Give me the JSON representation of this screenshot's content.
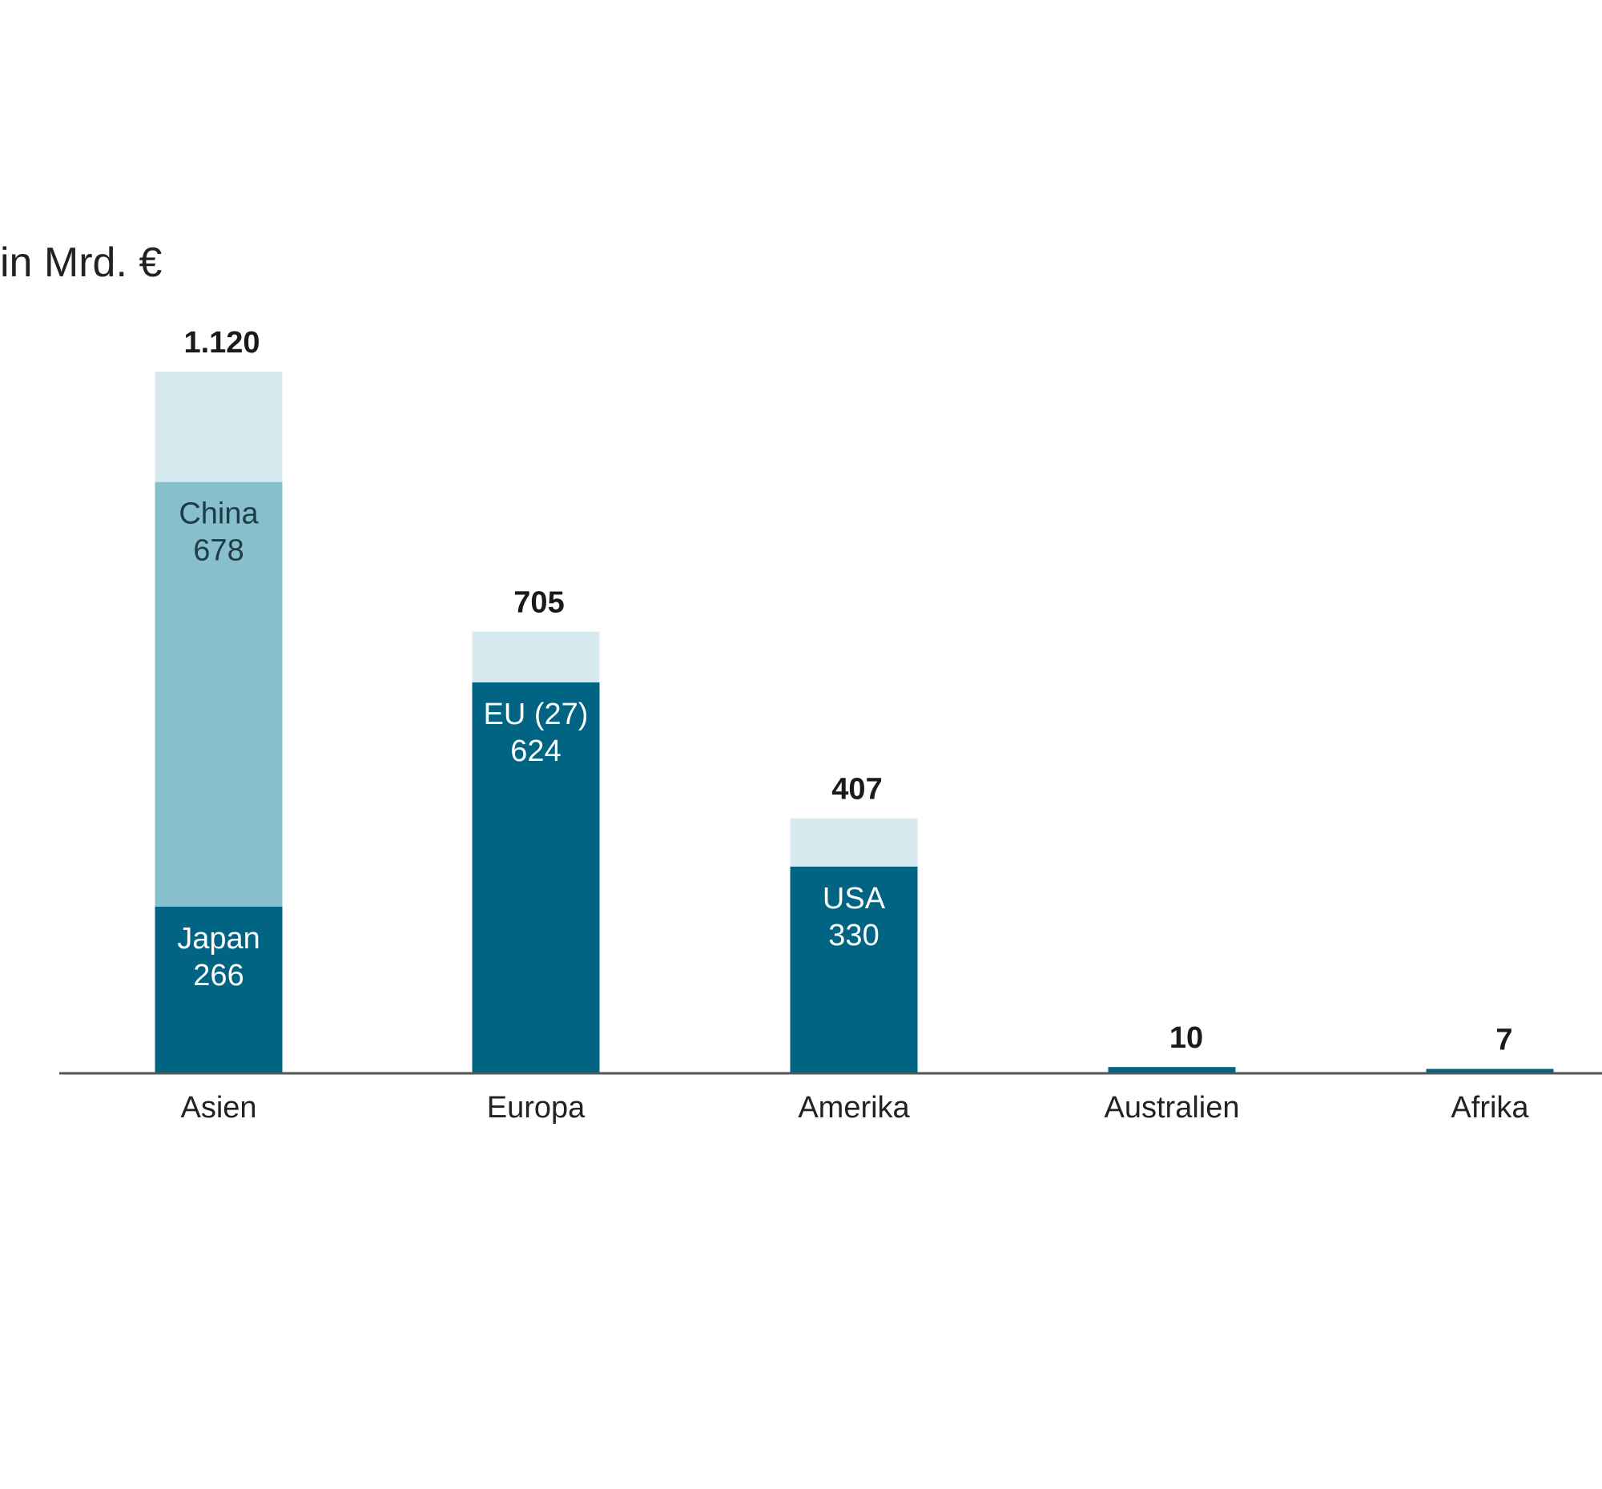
{
  "chart_data": {
    "type": "bar",
    "stacked": true,
    "unit_label": "in Mrd. €",
    "categories": [
      "Asien",
      "Europa",
      "Amerika",
      "Australien",
      "Afrika"
    ],
    "totals": [
      1120,
      705,
      407,
      10,
      7
    ],
    "total_labels": [
      "1.120",
      "705",
      "407",
      "10",
      "7"
    ],
    "segments": [
      [
        {
          "name": "Japan",
          "value": 266,
          "value_label": "266",
          "color": "#006482",
          "text_color": "#ffffff"
        },
        {
          "name": "China",
          "value": 678,
          "value_label": "678",
          "color": "#88bfcd",
          "text_color": "#1f3b47"
        },
        {
          "name": "",
          "value": 176,
          "value_label": "",
          "color": "#d6eaf0",
          "text_color": "#1f3b47"
        }
      ],
      [
        {
          "name": "EU (27)",
          "value": 624,
          "value_label": "624",
          "color": "#006482",
          "text_color": "#ffffff"
        },
        {
          "name": "",
          "value": 81,
          "value_label": "",
          "color": "#d6eaf0",
          "text_color": "#1f3b47"
        }
      ],
      [
        {
          "name": "USA",
          "value": 330,
          "value_label": "330",
          "color": "#006482",
          "text_color": "#ffffff"
        },
        {
          "name": "",
          "value": 77,
          "value_label": "",
          "color": "#d6eaf0",
          "text_color": "#1f3b47"
        }
      ],
      [
        {
          "name": "",
          "value": 10,
          "value_label": "",
          "color": "#006482",
          "text_color": "#ffffff"
        }
      ],
      [
        {
          "name": "",
          "value": 7,
          "value_label": "",
          "color": "#006482",
          "text_color": "#ffffff"
        }
      ]
    ],
    "ylim": [
      0,
      1120
    ],
    "grid": false,
    "legend": "none",
    "colors": {
      "dark": "#006482",
      "medium": "#88bfcd",
      "light": "#d6eaf0",
      "axis": "#555555"
    }
  }
}
